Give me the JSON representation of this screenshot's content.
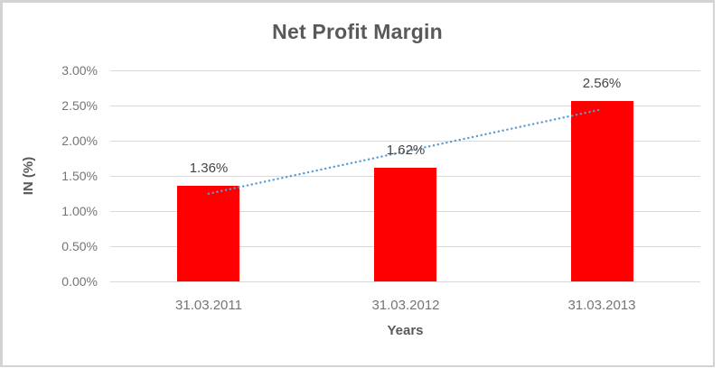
{
  "chart_data": {
    "type": "bar",
    "title": "Net Profit Margin",
    "xlabel": "Years",
    "ylabel": "IN (%)",
    "categories": [
      "31.03.2011",
      "31.03.2012",
      "31.03.2013"
    ],
    "values": [
      1.36,
      1.62,
      2.56
    ],
    "data_labels": [
      "1.36%",
      "1.62%",
      "2.56%"
    ],
    "ylim": [
      0,
      3
    ],
    "ytick_step": 0.5,
    "ytick_labels": [
      "0.00%",
      "0.50%",
      "1.00%",
      "1.50%",
      "2.00%",
      "2.50%",
      "3.00%"
    ],
    "grid": "horizontal",
    "legend": "none",
    "bar_color": "#FF0000",
    "trendline": {
      "type": "linear",
      "style": "dotted",
      "color": "#5B9BD5"
    },
    "colors": {
      "title_text": "#595959",
      "axis_title_text": "#595959",
      "tick_text": "#757575",
      "data_label_text": "#454545",
      "gridline": "#D9D9D9",
      "frame_border": "#D3D3D3"
    }
  }
}
